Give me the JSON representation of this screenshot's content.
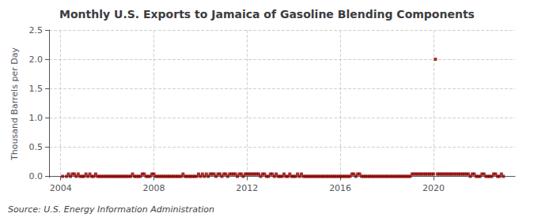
{
  "chart_data": {
    "type": "scatter",
    "title": "Monthly U.S. Exports to Jamaica of Gasoline Blending Components",
    "y_label": "Thousand Barrels per Day",
    "annotations": [
      "Source: U.S. Energy Information Administration"
    ],
    "color": "#8b0000",
    "marker": "square",
    "grid": true,
    "xlim": [
      2003.5,
      2023.5
    ],
    "xticks": [
      2004,
      2008,
      2012,
      2016,
      2020
    ],
    "ylim": [
      -0.02,
      2.5
    ],
    "yticks": [
      {
        "value": 0.0,
        "label": "0.0"
      },
      {
        "value": 0.5,
        "label": "0.5"
      },
      {
        "value": 1.0,
        "label": "1.0"
      },
      {
        "value": 1.5,
        "label": "1.5"
      },
      {
        "value": 2.0,
        "label": "2.0"
      },
      {
        "value": 2.5,
        "label": "2.5"
      }
    ],
    "x": [
      2004.083,
      2004.25,
      2004.333,
      2004.417,
      2004.5,
      2004.583,
      2004.667,
      2004.75,
      2004.833,
      2004.917,
      2005.0,
      2005.083,
      2005.167,
      2005.25,
      2005.333,
      2005.417,
      2005.5,
      2005.583,
      2005.667,
      2005.75,
      2005.833,
      2005.917,
      2006.0,
      2006.083,
      2006.167,
      2006.25,
      2006.333,
      2006.417,
      2006.5,
      2006.583,
      2006.667,
      2006.75,
      2006.833,
      2006.917,
      2007.0,
      2007.083,
      2007.167,
      2007.25,
      2007.333,
      2007.417,
      2007.5,
      2007.583,
      2007.667,
      2007.75,
      2007.833,
      2007.917,
      2008.0,
      2008.083,
      2008.167,
      2008.25,
      2008.333,
      2008.417,
      2008.5,
      2008.583,
      2008.667,
      2008.75,
      2008.833,
      2008.917,
      2009.0,
      2009.083,
      2009.167,
      2009.25,
      2009.333,
      2009.417,
      2009.5,
      2009.583,
      2009.667,
      2009.75,
      2009.833,
      2009.917,
      2010.0,
      2010.083,
      2010.167,
      2010.25,
      2010.333,
      2010.417,
      2010.5,
      2010.583,
      2010.667,
      2010.75,
      2010.833,
      2010.917,
      2011.0,
      2011.083,
      2011.167,
      2011.25,
      2011.333,
      2011.417,
      2011.5,
      2011.583,
      2011.667,
      2011.75,
      2011.833,
      2011.917,
      2012.0,
      2012.083,
      2012.167,
      2012.25,
      2012.333,
      2012.417,
      2012.5,
      2012.583,
      2012.667,
      2012.75,
      2012.833,
      2012.917,
      2013.0,
      2013.083,
      2013.167,
      2013.25,
      2013.333,
      2013.417,
      2013.5,
      2013.583,
      2013.667,
      2013.75,
      2013.833,
      2013.917,
      2014.0,
      2014.083,
      2014.167,
      2014.25,
      2014.333,
      2014.417,
      2014.5,
      2014.583,
      2014.667,
      2014.75,
      2014.833,
      2014.917,
      2015.0,
      2015.083,
      2015.167,
      2015.25,
      2015.333,
      2015.417,
      2015.5,
      2015.583,
      2015.667,
      2015.75,
      2015.833,
      2015.917,
      2016.0,
      2016.083,
      2016.167,
      2016.25,
      2016.333,
      2016.417,
      2016.5,
      2016.583,
      2016.667,
      2016.75,
      2016.833,
      2016.917,
      2017.0,
      2017.083,
      2017.167,
      2017.25,
      2017.333,
      2017.417,
      2017.5,
      2017.583,
      2017.667,
      2017.75,
      2017.833,
      2017.917,
      2018.0,
      2018.083,
      2018.167,
      2018.25,
      2018.333,
      2018.417,
      2018.5,
      2018.583,
      2018.667,
      2018.75,
      2018.833,
      2018.917,
      2019.0,
      2019.083,
      2019.167,
      2019.25,
      2019.333,
      2019.417,
      2019.5,
      2019.583,
      2019.667,
      2019.75,
      2019.833,
      2019.917,
      2020.0,
      2020.083,
      2020.167,
      2020.25,
      2020.333,
      2020.417,
      2020.5,
      2020.583,
      2020.667,
      2020.75,
      2020.833,
      2020.917,
      2021.0,
      2021.083,
      2021.167,
      2021.25,
      2021.333,
      2021.417,
      2021.5,
      2021.583,
      2021.667,
      2021.75,
      2021.833,
      2021.917,
      2022.0,
      2022.083,
      2022.167,
      2022.25,
      2022.333,
      2022.417,
      2022.5,
      2022.583,
      2022.667,
      2022.75,
      2022.833,
      2022.917,
      2023.0
    ],
    "values": [
      0.0,
      0.0,
      0.04,
      0.0,
      0.04,
      0.04,
      0.0,
      0.04,
      0.0,
      0.0,
      0.0,
      0.04,
      0.0,
      0.04,
      0.0,
      0.0,
      0.04,
      0.0,
      0.0,
      0.0,
      0.0,
      0.0,
      0.0,
      0.0,
      0.0,
      0.0,
      0.0,
      0.0,
      0.0,
      0.0,
      0.0,
      0.0,
      0.0,
      0.0,
      0.0,
      0.04,
      0.0,
      0.0,
      0.0,
      0.0,
      0.04,
      0.04,
      0.0,
      0.0,
      0.0,
      0.04,
      0.04,
      0.0,
      0.0,
      0.0,
      0.0,
      0.0,
      0.0,
      0.0,
      0.0,
      0.0,
      0.0,
      0.0,
      0.0,
      0.0,
      0.0,
      0.04,
      0.0,
      0.0,
      0.0,
      0.0,
      0.0,
      0.0,
      0.0,
      0.04,
      0.0,
      0.04,
      0.0,
      0.04,
      0.0,
      0.04,
      0.04,
      0.04,
      0.0,
      0.04,
      0.04,
      0.0,
      0.04,
      0.04,
      0.0,
      0.04,
      0.04,
      0.04,
      0.04,
      0.0,
      0.04,
      0.04,
      0.0,
      0.04,
      0.04,
      0.04,
      0.04,
      0.04,
      0.04,
      0.04,
      0.04,
      0.0,
      0.04,
      0.04,
      0.0,
      0.0,
      0.04,
      0.04,
      0.0,
      0.04,
      0.0,
      0.0,
      0.0,
      0.04,
      0.0,
      0.0,
      0.04,
      0.0,
      0.0,
      0.0,
      0.04,
      0.0,
      0.04,
      0.0,
      0.0,
      0.0,
      0.0,
      0.0,
      0.0,
      0.0,
      0.0,
      0.0,
      0.0,
      0.0,
      0.0,
      0.0,
      0.0,
      0.0,
      0.0,
      0.0,
      0.0,
      0.0,
      0.0,
      0.0,
      0.0,
      0.0,
      0.0,
      0.0,
      0.04,
      0.04,
      0.0,
      0.04,
      0.04,
      0.0,
      0.0,
      0.0,
      0.0,
      0.0,
      0.0,
      0.0,
      0.0,
      0.0,
      0.0,
      0.0,
      0.0,
      0.0,
      0.0,
      0.0,
      0.0,
      0.0,
      0.0,
      0.0,
      0.0,
      0.0,
      0.0,
      0.0,
      0.0,
      0.0,
      0.0,
      0.04,
      0.04,
      0.04,
      0.04,
      0.04,
      0.04,
      0.04,
      0.04,
      0.04,
      0.04,
      0.04,
      0.04,
      2.0,
      0.04,
      0.04,
      0.04,
      0.04,
      0.04,
      0.04,
      0.04,
      0.04,
      0.04,
      0.04,
      0.04,
      0.04,
      0.04,
      0.04,
      0.04,
      0.04,
      0.04,
      0.0,
      0.04,
      0.04,
      0.0,
      0.0,
      0.0,
      0.04,
      0.04,
      0.0,
      0.0,
      0.0,
      0.0,
      0.04,
      0.04,
      0.0,
      0.0,
      0.04,
      0.0
    ]
  }
}
